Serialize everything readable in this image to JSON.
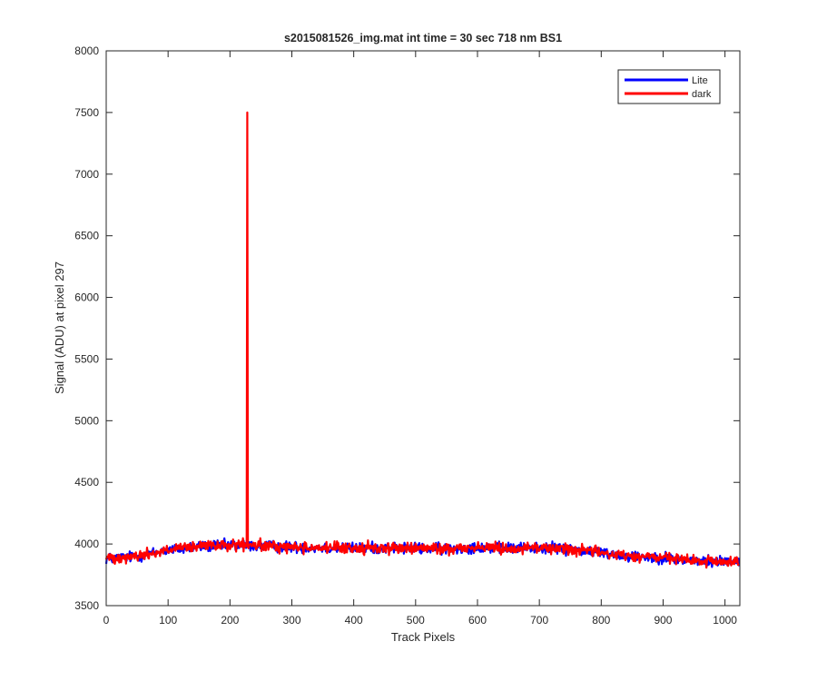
{
  "chart_data": {
    "type": "line",
    "title": "s2015081526_img.mat int time = 30 sec  718 nm BS1",
    "xlabel": "Track Pixels",
    "ylabel": "Signal (ADU) at pixel 297",
    "xlim": [
      0,
      1024
    ],
    "ylim": [
      3500,
      8000
    ],
    "x_ticks": [
      0,
      100,
      200,
      300,
      400,
      500,
      600,
      700,
      800,
      900,
      1000
    ],
    "y_ticks": [
      3500,
      4000,
      4500,
      5000,
      5500,
      6000,
      6500,
      7000,
      7500,
      8000
    ],
    "grid": false,
    "legend_position": "top-right",
    "series": [
      {
        "name": "Lite",
        "color": "#0000ff",
        "x": [
          0,
          50,
          100,
          150,
          200,
          250,
          300,
          350,
          400,
          450,
          500,
          550,
          600,
          650,
          700,
          750,
          800,
          850,
          900,
          950,
          1000,
          1024
        ],
        "values": [
          3880,
          3900,
          3950,
          3980,
          3990,
          3985,
          3975,
          3970,
          3965,
          3970,
          3965,
          3960,
          3975,
          3965,
          3970,
          3960,
          3930,
          3900,
          3890,
          3860,
          3860,
          3860
        ],
        "noise_amplitude": 45,
        "spikes": []
      },
      {
        "name": "dark",
        "color": "#ff0000",
        "x": [
          0,
          50,
          100,
          150,
          200,
          250,
          300,
          350,
          400,
          450,
          500,
          550,
          600,
          650,
          700,
          750,
          800,
          850,
          900,
          950,
          1000,
          1024
        ],
        "values": [
          3890,
          3900,
          3950,
          3980,
          3990,
          3985,
          3975,
          3970,
          3965,
          3970,
          3965,
          3960,
          3975,
          3965,
          3970,
          3960,
          3930,
          3900,
          3890,
          3860,
          3855,
          3860
        ],
        "noise_amplitude": 45,
        "spikes": [
          {
            "x": 228,
            "y": 7500
          }
        ]
      }
    ]
  }
}
